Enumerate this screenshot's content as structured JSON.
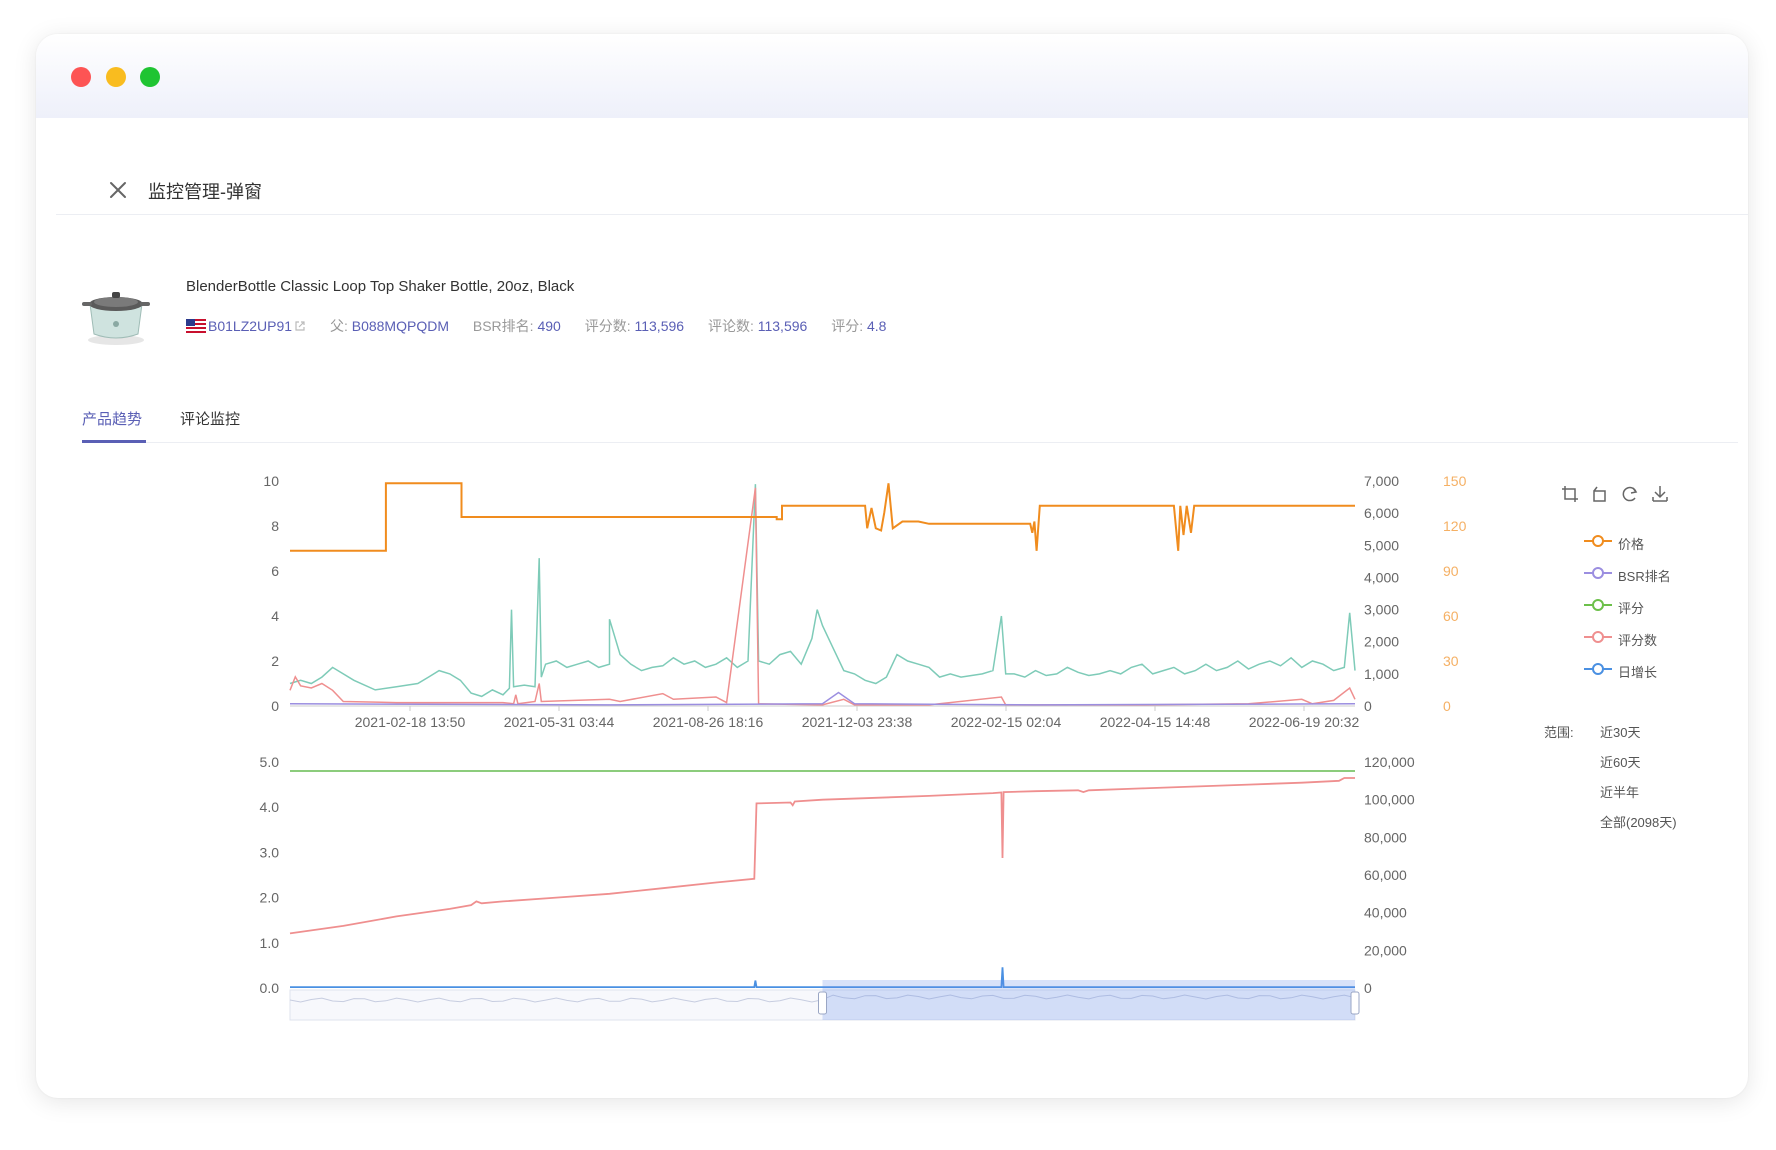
{
  "modal": {
    "title": "监控管理-弹窗"
  },
  "product": {
    "title": "BlenderBottle Classic Loop Top Shaker Bottle, 20oz, Black",
    "asin": "B01LZ2UP91",
    "parent_label": "父:",
    "parent_asin": "B088MQPQDM",
    "bsr_label": "BSR排名:",
    "bsr_value": "490",
    "rating_count_label": "评分数:",
    "rating_count_value": "113,596",
    "review_count_label": "评论数:",
    "review_count_value": "113,596",
    "rating_label": "评分:",
    "rating_value": "4.8"
  },
  "tabs": [
    {
      "label": "产品趋势",
      "active": true
    },
    {
      "label": "评论监控",
      "active": false
    }
  ],
  "legend": [
    {
      "label": "价格",
      "color": "#f08c1e"
    },
    {
      "label": "BSR排名",
      "color": "#9b8ee0"
    },
    {
      "label": "评分",
      "color": "#6cc04a"
    },
    {
      "label": "评分数",
      "color": "#ef8f8f"
    },
    {
      "label": "日增长",
      "color": "#4a90e2"
    }
  ],
  "range": {
    "label": "范围:",
    "options": [
      "近30天",
      "近60天",
      "近半年",
      "全部(2098天)"
    ]
  },
  "toolbox": [
    "crop-icon",
    "undo-crop-icon",
    "refresh-icon",
    "download-icon"
  ],
  "chart_data": [
    {
      "type": "line",
      "x_ticks": [
        "2021-02-18 13:50",
        "2021-05-31 03:44",
        "2021-08-26 18:16",
        "2021-12-03 23:38",
        "2022-02-15 02:04",
        "2022-04-15 14:48",
        "2022-06-19 20:32"
      ],
      "y_left_ticks": [
        "10",
        "8",
        "6",
        "4",
        "2",
        "0"
      ],
      "y_right1_ticks": [
        "7,000",
        "6,000",
        "5,000",
        "4,000",
        "3,000",
        "2,000",
        "1,000",
        "0"
      ],
      "y_right2_ticks": [
        "150",
        "120",
        "90",
        "60",
        "30",
        "0"
      ],
      "ylim_left": [
        0,
        10
      ],
      "ylim_right1": [
        0,
        7000
      ],
      "ylim_right2": [
        0,
        150
      ],
      "series": [
        {
          "name": "价格",
          "axis": "left",
          "color": "#f08c1e",
          "points": [
            [
              0,
              6.9
            ],
            [
              0.09,
              6.9
            ],
            [
              0.09,
              9.9
            ],
            [
              0.161,
              9.9
            ],
            [
              0.161,
              8.4
            ],
            [
              0.44,
              8.4
            ],
            [
              0.44,
              8.4
            ],
            [
              0.457,
              8.4
            ],
            [
              0.457,
              8.3
            ],
            [
              0.462,
              8.3
            ],
            [
              0.462,
              8.9
            ],
            [
              0.54,
              8.9
            ],
            [
              0.542,
              7.9
            ],
            [
              0.546,
              8.8
            ],
            [
              0.55,
              7.9
            ],
            [
              0.555,
              7.8
            ],
            [
              0.558,
              8.6
            ],
            [
              0.562,
              9.9
            ],
            [
              0.566,
              7.9
            ],
            [
              0.575,
              8.2
            ],
            [
              0.59,
              8.2
            ],
            [
              0.6,
              8.1
            ],
            [
              0.695,
              8.1
            ],
            [
              0.697,
              7.7
            ],
            [
              0.699,
              8.2
            ],
            [
              0.701,
              6.9
            ],
            [
              0.704,
              8.9
            ],
            [
              0.83,
              8.9
            ],
            [
              0.834,
              6.9
            ],
            [
              0.836,
              8.9
            ],
            [
              0.839,
              7.6
            ],
            [
              0.842,
              8.9
            ],
            [
              0.846,
              7.7
            ],
            [
              0.849,
              8.9
            ],
            [
              1,
              8.9
            ]
          ]
        },
        {
          "name": "BSR排名",
          "axis": "right1",
          "color": "#7ecbb8",
          "points": [
            [
              0,
              700
            ],
            [
              0.01,
              800
            ],
            [
              0.02,
              700
            ],
            [
              0.03,
              900
            ],
            [
              0.04,
              1200
            ],
            [
              0.06,
              800
            ],
            [
              0.08,
              500
            ],
            [
              0.1,
              600
            ],
            [
              0.11,
              650
            ],
            [
              0.12,
              700
            ],
            [
              0.13,
              900
            ],
            [
              0.14,
              1100
            ],
            [
              0.15,
              1000
            ],
            [
              0.16,
              800
            ],
            [
              0.17,
              400
            ],
            [
              0.18,
              300
            ],
            [
              0.19,
              500
            ],
            [
              0.2,
              350
            ],
            [
              0.206,
              550
            ],
            [
              0.208,
              3000
            ],
            [
              0.21,
              600
            ],
            [
              0.22,
              650
            ],
            [
              0.23,
              600
            ],
            [
              0.234,
              4600
            ],
            [
              0.236,
              900
            ],
            [
              0.24,
              1300
            ],
            [
              0.25,
              1400
            ],
            [
              0.26,
              1200
            ],
            [
              0.27,
              1300
            ],
            [
              0.28,
              1400
            ],
            [
              0.29,
              1200
            ],
            [
              0.3,
              1300
            ],
            [
              0.3,
              2700
            ],
            [
              0.31,
              1600
            ],
            [
              0.32,
              1300
            ],
            [
              0.33,
              1100
            ],
            [
              0.34,
              1200
            ],
            [
              0.35,
              1250
            ],
            [
              0.36,
              1500
            ],
            [
              0.37,
              1300
            ],
            [
              0.38,
              1400
            ],
            [
              0.39,
              1200
            ],
            [
              0.4,
              1300
            ],
            [
              0.41,
              1500
            ],
            [
              0.42,
              1200
            ],
            [
              0.43,
              1400
            ],
            [
              0.437,
              6900
            ],
            [
              0.44,
              1400
            ],
            [
              0.45,
              1300
            ],
            [
              0.46,
              1600
            ],
            [
              0.47,
              1700
            ],
            [
              0.48,
              1300
            ],
            [
              0.49,
              2100
            ],
            [
              0.495,
              3000
            ],
            [
              0.5,
              2500
            ],
            [
              0.51,
              1800
            ],
            [
              0.52,
              1100
            ],
            [
              0.53,
              1000
            ],
            [
              0.54,
              800
            ],
            [
              0.55,
              700
            ],
            [
              0.56,
              900
            ],
            [
              0.57,
              1600
            ],
            [
              0.58,
              1400
            ],
            [
              0.59,
              1300
            ],
            [
              0.6,
              1200
            ],
            [
              0.61,
              900
            ],
            [
              0.62,
              1000
            ],
            [
              0.63,
              900
            ],
            [
              0.64,
              950
            ],
            [
              0.65,
              1000
            ],
            [
              0.66,
              1100
            ],
            [
              0.668,
              2800
            ],
            [
              0.672,
              1000
            ],
            [
              0.68,
              1000
            ],
            [
              0.69,
              900
            ],
            [
              0.7,
              1100
            ],
            [
              0.71,
              950
            ],
            [
              0.72,
              1000
            ],
            [
              0.73,
              1200
            ],
            [
              0.74,
              1050
            ],
            [
              0.75,
              950
            ],
            [
              0.76,
              1000
            ],
            [
              0.77,
              1100
            ],
            [
              0.78,
              1000
            ],
            [
              0.79,
              1200
            ],
            [
              0.8,
              1300
            ],
            [
              0.81,
              1000
            ],
            [
              0.82,
              1100
            ],
            [
              0.83,
              1200
            ],
            [
              0.84,
              1000
            ],
            [
              0.85,
              1100
            ],
            [
              0.86,
              1300
            ],
            [
              0.87,
              1100
            ],
            [
              0.88,
              1200
            ],
            [
              0.89,
              1400
            ],
            [
              0.9,
              1150
            ],
            [
              0.91,
              1300
            ],
            [
              0.92,
              1400
            ],
            [
              0.93,
              1250
            ],
            [
              0.94,
              1500
            ],
            [
              0.95,
              1200
            ],
            [
              0.96,
              1400
            ],
            [
              0.97,
              1300
            ],
            [
              0.98,
              1100
            ],
            [
              0.99,
              1200
            ],
            [
              0.995,
              2900
            ],
            [
              1,
              1100
            ]
          ]
        },
        {
          "name": "评分数",
          "axis": "left",
          "color": "#ef8f8f",
          "points": [
            [
              0,
              0.7
            ],
            [
              0.005,
              1.3
            ],
            [
              0.01,
              0.9
            ],
            [
              0.02,
              0.8
            ],
            [
              0.03,
              1.0
            ],
            [
              0.04,
              0.7
            ],
            [
              0.05,
              0.2
            ],
            [
              0.1,
              0.15
            ],
            [
              0.2,
              0.15
            ],
            [
              0.21,
              0.1
            ],
            [
              0.212,
              0.5
            ],
            [
              0.214,
              0.1
            ],
            [
              0.23,
              0.2
            ],
            [
              0.234,
              1.0
            ],
            [
              0.236,
              0.2
            ],
            [
              0.3,
              0.3
            ],
            [
              0.31,
              0.2
            ],
            [
              0.35,
              0.55
            ],
            [
              0.36,
              0.3
            ],
            [
              0.4,
              0.4
            ],
            [
              0.41,
              0.15
            ],
            [
              0.437,
              9.7
            ],
            [
              0.44,
              0.1
            ],
            [
              0.5,
              0.05
            ],
            [
              0.52,
              0.3
            ],
            [
              0.53,
              0.05
            ],
            [
              0.6,
              0.05
            ],
            [
              0.668,
              0.4
            ],
            [
              0.672,
              0.05
            ],
            [
              0.8,
              0.05
            ],
            [
              0.9,
              0.1
            ],
            [
              0.95,
              0.3
            ],
            [
              0.96,
              0.1
            ],
            [
              0.98,
              0.25
            ],
            [
              0.995,
              0.8
            ],
            [
              1,
              0.3
            ]
          ]
        },
        {
          "name": "评分",
          "axis": "left",
          "color": "#9b8ee0",
          "points": [
            [
              0,
              0.1
            ],
            [
              0.3,
              0.05
            ],
            [
              0.5,
              0.1
            ],
            [
              0.515,
              0.6
            ],
            [
              0.53,
              0.1
            ],
            [
              0.7,
              0.05
            ],
            [
              1,
              0.1
            ]
          ]
        }
      ]
    },
    {
      "type": "line",
      "y_left_ticks": [
        "5.0",
        "4.0",
        "3.0",
        "2.0",
        "1.0",
        "0.0"
      ],
      "y_right_ticks": [
        "120,000",
        "100,000",
        "80,000",
        "60,000",
        "40,000",
        "20,000",
        "0"
      ],
      "ylim_left": [
        0,
        5
      ],
      "ylim_right": [
        0,
        120000
      ],
      "series": [
        {
          "name": "评分",
          "axis": "left",
          "color": "#7cc46a",
          "points": [
            [
              0,
              4.8
            ],
            [
              1,
              4.8
            ]
          ]
        },
        {
          "name": "评分数",
          "axis": "right",
          "color": "#ef8f8f",
          "points": [
            [
              0,
              29000
            ],
            [
              0.05,
              33000
            ],
            [
              0.1,
              38000
            ],
            [
              0.15,
              42000
            ],
            [
              0.17,
              44000
            ],
            [
              0.175,
              46000
            ],
            [
              0.18,
              45000
            ],
            [
              0.2,
              46000
            ],
            [
              0.25,
              48000
            ],
            [
              0.3,
              50000
            ],
            [
              0.35,
              53000
            ],
            [
              0.4,
              56000
            ],
            [
              0.436,
              58000
            ],
            [
              0.438,
              98000
            ],
            [
              0.47,
              98500
            ],
            [
              0.472,
              97000
            ],
            [
              0.474,
              99000
            ],
            [
              0.5,
              100000
            ],
            [
              0.55,
              101000
            ],
            [
              0.6,
              102000
            ],
            [
              0.64,
              103000
            ],
            [
              0.66,
              103500
            ],
            [
              0.668,
              103800
            ],
            [
              0.669,
              69000
            ],
            [
              0.67,
              104000
            ],
            [
              0.7,
              104500
            ],
            [
              0.74,
              105000
            ],
            [
              0.745,
              104000
            ],
            [
              0.75,
              105000
            ],
            [
              0.8,
              106000
            ],
            [
              0.85,
              107000
            ],
            [
              0.9,
              108000
            ],
            [
              0.95,
              109000
            ],
            [
              0.985,
              110000
            ],
            [
              0.99,
              111500
            ],
            [
              1,
              111500
            ]
          ]
        },
        {
          "name": "日增长",
          "axis": "right",
          "color": "#4a90e2",
          "points": [
            [
              0,
              500
            ],
            [
              0.436,
              500
            ],
            [
              0.437,
              4000
            ],
            [
              0.438,
              500
            ],
            [
              0.668,
              500
            ],
            [
              0.669,
              11000
            ],
            [
              0.67,
              500
            ],
            [
              1,
              500
            ]
          ]
        }
      ],
      "dataZoom": {
        "start": 0.5,
        "end": 1.0
      }
    }
  ]
}
